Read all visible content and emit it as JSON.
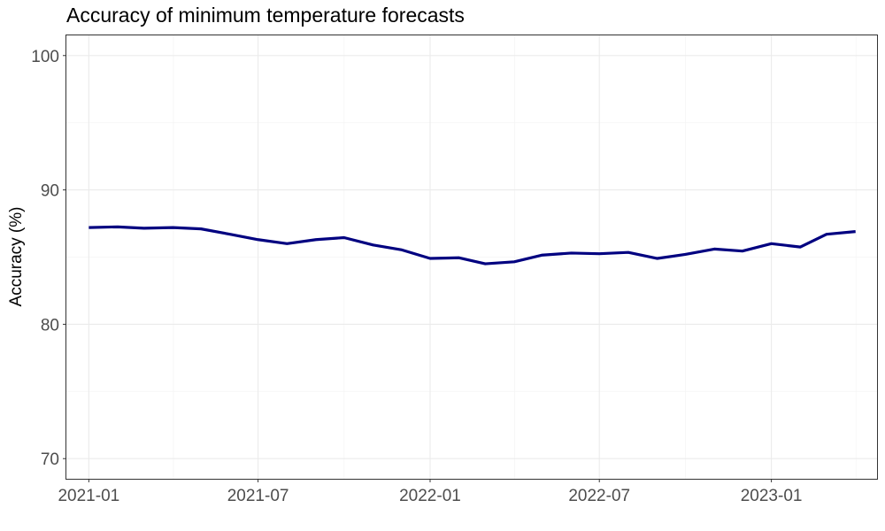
{
  "chart_data": {
    "type": "line",
    "title": "Accuracy of minimum temperature forecasts",
    "xlabel": "",
    "ylabel": "Accuracy (%)",
    "ylim": [
      68.5,
      101.5
    ],
    "xlim": [
      "2020-12-08",
      "2023-04-24"
    ],
    "y_ticks": [
      70,
      80,
      90,
      100
    ],
    "x_ticks": [
      "2021-01",
      "2021-07",
      "2022-01",
      "2022-07",
      "2023-01"
    ],
    "grid": true,
    "line_color": "#000080",
    "series": [
      {
        "x": [
          "2021-01",
          "2021-02",
          "2021-03",
          "2021-04",
          "2021-05",
          "2021-06",
          "2021-07",
          "2021-08",
          "2021-09",
          "2021-10",
          "2021-11",
          "2021-12",
          "2022-01",
          "2022-02",
          "2022-03",
          "2022-04",
          "2022-05",
          "2022-06",
          "2022-07",
          "2022-08",
          "2022-09",
          "2022-10",
          "2022-11",
          "2022-12",
          "2023-01",
          "2023-02",
          "2023-03",
          "2023-04"
        ],
        "values": [
          87.2,
          87.25,
          87.15,
          87.2,
          87.1,
          86.7,
          86.3,
          86.0,
          86.3,
          86.45,
          85.9,
          85.55,
          84.9,
          84.95,
          84.5,
          84.65,
          85.15,
          85.3,
          85.25,
          85.35,
          84.9,
          85.2,
          85.6,
          85.45,
          86.0,
          85.75,
          86.7,
          86.9
        ]
      }
    ]
  }
}
